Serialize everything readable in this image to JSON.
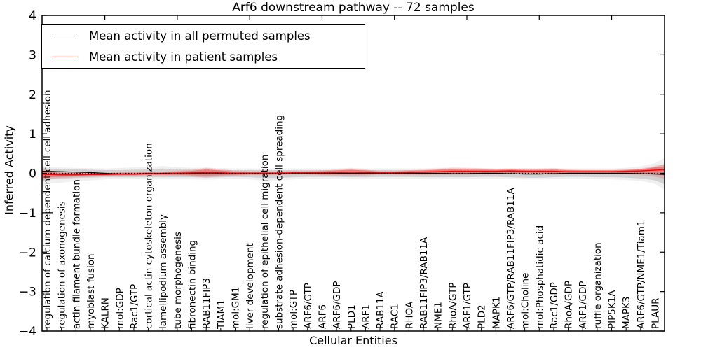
{
  "chart_data": {
    "type": "line",
    "title": "Arf6 downstream pathway -- 72 samples",
    "xlabel": "Cellular Entities",
    "ylabel": "Inferred Activity",
    "ylim": [
      -4,
      4
    ],
    "yticks": [
      "4",
      "3",
      "2",
      "1",
      "0",
      "−1",
      "−2",
      "−3",
      "−4"
    ],
    "ytick_values": [
      4,
      3,
      2,
      1,
      0,
      -1,
      -2,
      -3,
      -4
    ],
    "zero_reference_line": 0,
    "grid": false,
    "legend_position": "upper left",
    "top_tick_indices": [
      4,
      9,
      14,
      19,
      24,
      29,
      34,
      39
    ],
    "categories": [
      "regulation of calcium-dependent cell-cell adhesion",
      "regulation of axonogenesis",
      "actin filament bundle formation",
      "myoblast fusion",
      "KALRN",
      "mol:GDP",
      "Rac1/GTP",
      "cortical actin cytoskeleton organization",
      "lamellipodium assembly",
      "tube morphogenesis",
      "fibronectin binding",
      "RAB11FIP3",
      "TIAM1",
      "mol:GM1",
      "liver development",
      "regulation of epithelial cell migration",
      "substrate adhesion-dependent cell spreading",
      "mol:GTP",
      "ARF6/GTP",
      "ARF6",
      "ARF6/GDP",
      "PLD1",
      "ARF1",
      "RAB11A",
      "RAC1",
      "RHOA",
      "RAB11FIP3/RAB11A",
      "NME1",
      "RhoA/GTP",
      "ARF1/GTP",
      "PLD2",
      "MAPK1",
      "ARF6/GTP/RAB11FIP3/RAB11A",
      "mol:Choline",
      "mol:Phosphatidic acid",
      "Rac1/GDP",
      "RhoA/GDP",
      "ARF1/GDP",
      "ruffle organization",
      "PIP5K1A",
      "MAPK3",
      "ARF6/GTP/NME1/Tiam1",
      "PLAUR"
    ],
    "series": [
      {
        "name": "Mean activity in all permuted samples",
        "color": "#000000",
        "values": [
          0.05,
          0.04,
          0.03,
          0.02,
          0.0,
          -0.02,
          -0.02,
          -0.01,
          0.0,
          0.0,
          0.0,
          -0.01,
          -0.01,
          0.0,
          0.0,
          0.0,
          0.0,
          0.0,
          0.0,
          0.0,
          0.0,
          0.0,
          0.0,
          0.0,
          0.0,
          0.0,
          0.0,
          0.0,
          -0.01,
          -0.01,
          0.0,
          0.0,
          -0.01,
          -0.02,
          -0.02,
          -0.01,
          0.0,
          0.0,
          0.0,
          0.0,
          0.0,
          -0.01,
          -0.02
        ]
      },
      {
        "name": "Mean activity in patient samples",
        "color": "#ff0000",
        "values": [
          -0.03,
          -0.04,
          -0.04,
          -0.03,
          -0.03,
          -0.02,
          -0.02,
          -0.01,
          -0.01,
          0.0,
          0.01,
          0.02,
          0.01,
          0.0,
          0.0,
          0.0,
          0.0,
          0.01,
          0.01,
          0.01,
          0.02,
          0.03,
          0.02,
          0.01,
          0.01,
          0.02,
          0.03,
          0.04,
          0.05,
          0.05,
          0.05,
          0.05,
          0.06,
          0.05,
          0.05,
          0.05,
          0.04,
          0.04,
          0.04,
          0.04,
          0.05,
          0.06,
          0.08
        ]
      }
    ],
    "bands": [
      {
        "name": "permuted-samples-range",
        "series": "Mean activity in all permuted samples",
        "fill": "rgba(0,0,0,0.12)",
        "fill_outer": "rgba(0,0,0,0.06)",
        "upper": [
          0.12,
          0.11,
          0.1,
          0.09,
          0.08,
          0.08,
          0.09,
          0.1,
          0.12,
          0.1,
          0.09,
          0.09,
          0.08,
          0.08,
          0.08,
          0.08,
          0.08,
          0.08,
          0.08,
          0.08,
          0.08,
          0.09,
          0.08,
          0.08,
          0.08,
          0.08,
          0.08,
          0.09,
          0.09,
          0.08,
          0.08,
          0.08,
          0.08,
          0.08,
          0.08,
          0.08,
          0.08,
          0.08,
          0.08,
          0.08,
          0.09,
          0.11,
          0.16
        ],
        "lower": [
          -0.16,
          -0.14,
          -0.12,
          -0.11,
          -0.1,
          -0.1,
          -0.1,
          -0.1,
          -0.1,
          -0.1,
          -0.1,
          -0.11,
          -0.1,
          -0.09,
          -0.1,
          -0.12,
          -0.12,
          -0.1,
          -0.09,
          -0.09,
          -0.09,
          -0.1,
          -0.1,
          -0.09,
          -0.09,
          -0.09,
          -0.1,
          -0.1,
          -0.1,
          -0.1,
          -0.09,
          -0.09,
          -0.1,
          -0.11,
          -0.11,
          -0.1,
          -0.09,
          -0.09,
          -0.1,
          -0.1,
          -0.11,
          -0.13,
          -0.18
        ],
        "edge_left": {
          "mean": 0.05,
          "upper": 0.15,
          "lower": -0.22
        },
        "edge_right": {
          "mean": -0.03,
          "upper": 0.24,
          "lower": -0.28
        }
      },
      {
        "name": "patient-samples-range",
        "series": "Mean activity in patient samples",
        "fill": "rgba(255,0,0,0.30)",
        "fill_outer": "rgba(255,0,0,0.13)",
        "upper": [
          0.04,
          0.01,
          0.0,
          0.0,
          0.0,
          0.01,
          0.01,
          0.02,
          0.02,
          0.04,
          0.06,
          0.1,
          0.07,
          0.04,
          0.03,
          0.03,
          0.03,
          0.04,
          0.04,
          0.05,
          0.07,
          0.09,
          0.07,
          0.04,
          0.04,
          0.06,
          0.07,
          0.09,
          0.11,
          0.11,
          0.1,
          0.09,
          0.1,
          0.09,
          0.09,
          0.1,
          0.08,
          0.07,
          0.07,
          0.07,
          0.08,
          0.1,
          0.15
        ],
        "lower": [
          -0.1,
          -0.09,
          -0.08,
          -0.07,
          -0.06,
          -0.05,
          -0.05,
          -0.04,
          -0.04,
          -0.04,
          -0.05,
          -0.06,
          -0.05,
          -0.04,
          -0.03,
          -0.03,
          -0.03,
          -0.02,
          -0.02,
          -0.03,
          -0.03,
          -0.03,
          -0.03,
          -0.02,
          -0.02,
          -0.02,
          -0.02,
          -0.01,
          -0.01,
          -0.01,
          0.0,
          0.0,
          0.01,
          0.0,
          0.0,
          -0.01,
          0.0,
          0.0,
          0.01,
          0.01,
          0.0,
          -0.01,
          -0.03
        ],
        "edge_left": {
          "mean": -0.02,
          "upper": 0.07,
          "lower": -0.13
        },
        "edge_right": {
          "mean": 0.09,
          "upper": 0.18,
          "lower": -0.06
        }
      }
    ]
  }
}
